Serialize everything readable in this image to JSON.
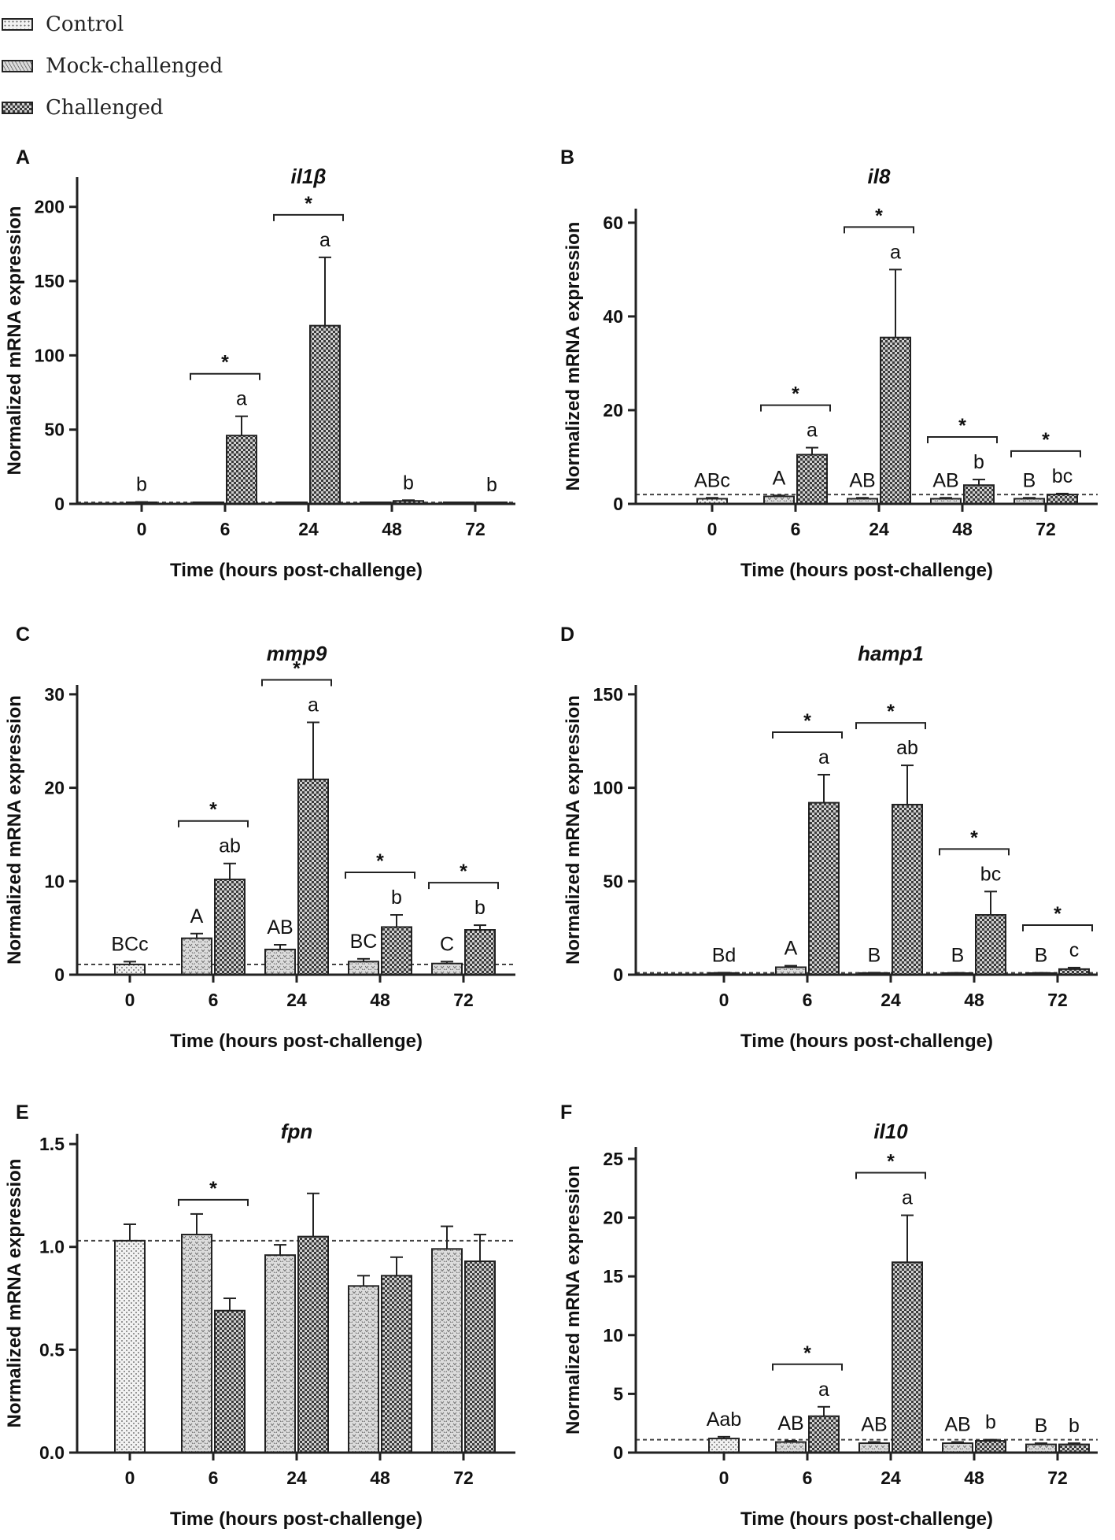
{
  "legend": [
    {
      "label": "Control",
      "pattern": "control"
    },
    {
      "label": "Mock-challenged",
      "pattern": "mock"
    },
    {
      "label": "Challenged",
      "pattern": "challenged"
    }
  ],
  "colors": {
    "ink": "#222222",
    "control_fill": "#f2f2f2",
    "mock_fill": "#dcdcdc",
    "challenged_fill": "#3a3a3a",
    "reference_line": "#444444"
  },
  "chart_data": [
    {
      "type": "bar",
      "panel": "A",
      "title": "il1β",
      "xlabel": "Time (hours post-challenge)",
      "ylabel": "Normalized mRNA expression",
      "categories": [
        "0",
        "6",
        "24",
        "48",
        "72"
      ],
      "yticks": [
        "0",
        "50",
        "100",
        "150",
        "200"
      ],
      "ylim": [
        0,
        220
      ],
      "reference_line": 1,
      "control": {
        "value": 1,
        "error": 0.3,
        "label": "b"
      },
      "series": [
        {
          "name": "Mock-challenged",
          "values": [
            null,
            0.8,
            0.8,
            0.8,
            0.8
          ],
          "errors": [
            null,
            0.1,
            0.1,
            0.1,
            0.1
          ],
          "labels": [
            "",
            "",
            "",
            "",
            ""
          ]
        },
        {
          "name": "Challenged",
          "values": [
            null,
            46,
            120,
            2,
            0.8
          ],
          "errors": [
            null,
            13,
            46,
            0.5,
            0.1
          ],
          "labels": [
            "",
            "a",
            "a",
            "b",
            "b"
          ]
        }
      ],
      "significance": [
        {
          "category": "6",
          "label": "*"
        },
        {
          "category": "24",
          "label": "*"
        }
      ]
    },
    {
      "type": "bar",
      "panel": "B",
      "title": "il8",
      "xlabel": "Time (hours post-challenge)",
      "ylabel": "Normalized mRNA expression",
      "categories": [
        "0",
        "6",
        "24",
        "48",
        "72"
      ],
      "yticks": [
        "0",
        "20",
        "40",
        "60"
      ],
      "ylim": [
        0,
        63
      ],
      "reference_line": 2,
      "control": {
        "value": 1.1,
        "error": 0.2,
        "label": "ABc"
      },
      "series": [
        {
          "name": "Mock-challenged",
          "values": [
            null,
            1.6,
            1.1,
            1.1,
            1.1
          ],
          "errors": [
            null,
            0.2,
            0.2,
            0.2,
            0.2
          ],
          "labels": [
            "",
            "A",
            "AB",
            "AB",
            "B"
          ]
        },
        {
          "name": "Challenged",
          "values": [
            null,
            10.5,
            35.5,
            4,
            2
          ],
          "errors": [
            null,
            1.5,
            14.5,
            1.2,
            0.2
          ],
          "labels": [
            "",
            "a",
            "a",
            "b",
            "bc"
          ]
        }
      ],
      "significance": [
        {
          "category": "6",
          "label": "*"
        },
        {
          "category": "24",
          "label": "*"
        },
        {
          "category": "48",
          "label": "*"
        },
        {
          "category": "72",
          "label": "*"
        }
      ]
    },
    {
      "type": "bar",
      "panel": "C",
      "title": "mmp9",
      "xlabel": "Time (hours post-challenge)",
      "ylabel": "Normalized mRNA expression",
      "categories": [
        "0",
        "6",
        "24",
        "48",
        "72"
      ],
      "yticks": [
        "0",
        "10",
        "20",
        "30"
      ],
      "ylim": [
        0,
        31
      ],
      "reference_line": 1.1,
      "control": {
        "value": 1.1,
        "error": 0.3,
        "label": "BCc"
      },
      "series": [
        {
          "name": "Mock-challenged",
          "values": [
            null,
            3.9,
            2.7,
            1.4,
            1.2
          ],
          "errors": [
            null,
            0.5,
            0.5,
            0.3,
            0.2
          ],
          "labels": [
            "",
            "A",
            "AB",
            "BC",
            "C"
          ]
        },
        {
          "name": "Challenged",
          "values": [
            null,
            10.2,
            20.9,
            5.1,
            4.8
          ],
          "errors": [
            null,
            1.7,
            6.1,
            1.3,
            0.5
          ],
          "labels": [
            "",
            "ab",
            "a",
            "b",
            "b"
          ]
        }
      ],
      "significance": [
        {
          "category": "6",
          "label": "*"
        },
        {
          "category": "24",
          "label": "*"
        },
        {
          "category": "48",
          "label": "*"
        },
        {
          "category": "72",
          "label": "*"
        }
      ]
    },
    {
      "type": "bar",
      "panel": "D",
      "title": "hamp1",
      "xlabel": "Time (hours post-challenge)",
      "ylabel": "Normalized mRNA expression",
      "categories": [
        "0",
        "6",
        "24",
        "48",
        "72"
      ],
      "yticks": [
        "0",
        "50",
        "100",
        "150"
      ],
      "ylim": [
        0,
        155
      ],
      "reference_line": 1,
      "control": {
        "value": 0.9,
        "error": 0.2,
        "label": "Bd"
      },
      "series": [
        {
          "name": "Mock-challenged",
          "values": [
            null,
            4,
            0.9,
            0.8,
            0.8
          ],
          "errors": [
            null,
            0.8,
            0.2,
            0.2,
            0.2
          ],
          "labels": [
            "",
            "A",
            "B",
            "B",
            "B"
          ]
        },
        {
          "name": "Challenged",
          "values": [
            null,
            92,
            91,
            32,
            3
          ],
          "errors": [
            null,
            15,
            21,
            12.5,
            0.8
          ],
          "labels": [
            "",
            "a",
            "ab",
            "bc",
            "c"
          ]
        }
      ],
      "significance": [
        {
          "category": "6",
          "label": "*"
        },
        {
          "category": "24",
          "label": "*"
        },
        {
          "category": "48",
          "label": "*"
        },
        {
          "category": "72",
          "label": "*"
        }
      ]
    },
    {
      "type": "bar",
      "panel": "E",
      "title": "fpn",
      "xlabel": "Time (hours post-challenge)",
      "ylabel": "Normalized mRNA expression",
      "categories": [
        "0",
        "6",
        "24",
        "48",
        "72"
      ],
      "yticks": [
        "0.0",
        "0.5",
        "1.0",
        "1.5"
      ],
      "ylim": [
        0,
        1.55
      ],
      "reference_line": 1.03,
      "control": {
        "value": 1.03,
        "error": 0.08,
        "label": ""
      },
      "series": [
        {
          "name": "Mock-challenged",
          "values": [
            null,
            1.06,
            0.96,
            0.81,
            0.99
          ],
          "errors": [
            null,
            0.1,
            0.05,
            0.05,
            0.11
          ],
          "labels": [
            "",
            "",
            "",
            "",
            ""
          ]
        },
        {
          "name": "Challenged",
          "values": [
            null,
            0.69,
            1.05,
            0.86,
            0.93
          ],
          "errors": [
            null,
            0.06,
            0.21,
            0.09,
            0.13
          ],
          "labels": [
            "",
            "",
            "",
            "",
            ""
          ]
        }
      ],
      "significance": [
        {
          "category": "6",
          "label": "*"
        }
      ]
    },
    {
      "type": "bar",
      "panel": "F",
      "title": "il10",
      "xlabel": "Time (hours post-challenge)",
      "ylabel": "Normalized mRNA expression",
      "categories": [
        "0",
        "6",
        "24",
        "48",
        "72"
      ],
      "yticks": [
        "0",
        "5",
        "10",
        "15",
        "20",
        "25"
      ],
      "ylim": [
        0,
        26
      ],
      "reference_line": 1.1,
      "control": {
        "value": 1.2,
        "error": 0.15,
        "label": "Aab"
      },
      "series": [
        {
          "name": "Mock-challenged",
          "values": [
            null,
            0.9,
            0.8,
            0.8,
            0.7
          ],
          "errors": [
            null,
            0.1,
            0.1,
            0.1,
            0.1
          ],
          "labels": [
            "",
            "AB",
            "AB",
            "AB",
            "B"
          ]
        },
        {
          "name": "Challenged",
          "values": [
            null,
            3.1,
            16.2,
            1,
            0.7
          ],
          "errors": [
            null,
            0.8,
            4,
            0.1,
            0.1
          ],
          "labels": [
            "",
            "a",
            "a",
            "b",
            "b"
          ]
        }
      ],
      "significance": [
        {
          "category": "6",
          "label": "*"
        },
        {
          "category": "24",
          "label": "*"
        }
      ]
    }
  ]
}
